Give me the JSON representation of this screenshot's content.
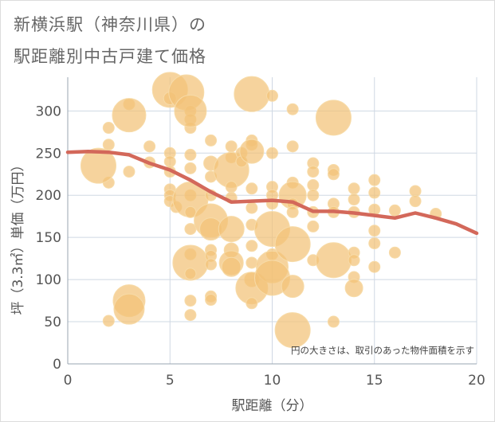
{
  "title_lines": [
    "新横浜駅（神奈川県）の",
    "駅距離別中古戸建て価格"
  ],
  "colors": {
    "bubble_fill": "#F2C277",
    "bubble_stroke": "#F7DBA8",
    "line": "#D3685A",
    "grid": "#cfd8e3",
    "text": "#555555"
  },
  "chart_data": {
    "type": "scatter",
    "xlabel": "駅距離（分）",
    "ylabel": "坪（3.3㎡）単価（万円）",
    "xlim": [
      0,
      20
    ],
    "ylim": [
      0,
      340
    ],
    "xticks": [
      0,
      5,
      10,
      15,
      20
    ],
    "yticks": [
      0,
      50,
      100,
      150,
      200,
      250,
      300
    ],
    "grid": true,
    "note": "円の大きさは、取引のあった物件面積を示す",
    "bubbles": [
      {
        "x": 2,
        "y": 51,
        "r": 7
      },
      {
        "x": 2,
        "y": 215,
        "r": 7
      },
      {
        "x": 2,
        "y": 260,
        "r": 7
      },
      {
        "x": 2,
        "y": 280,
        "r": 7
      },
      {
        "x": 1.5,
        "y": 235,
        "r": 22
      },
      {
        "x": 3,
        "y": 308,
        "r": 7
      },
      {
        "x": 3,
        "y": 295,
        "r": 21
      },
      {
        "x": 3,
        "y": 228,
        "r": 7
      },
      {
        "x": 3,
        "y": 75,
        "r": 20
      },
      {
        "x": 3,
        "y": 65,
        "r": 19
      },
      {
        "x": 4,
        "y": 258,
        "r": 7
      },
      {
        "x": 4,
        "y": 239,
        "r": 7
      },
      {
        "x": 5,
        "y": 325,
        "r": 22
      },
      {
        "x": 5,
        "y": 315,
        "r": 8
      },
      {
        "x": 5,
        "y": 250,
        "r": 7
      },
      {
        "x": 5,
        "y": 240,
        "r": 7
      },
      {
        "x": 5,
        "y": 228,
        "r": 7
      },
      {
        "x": 5,
        "y": 207,
        "r": 7
      },
      {
        "x": 5,
        "y": 200,
        "r": 7
      },
      {
        "x": 5,
        "y": 193,
        "r": 7
      },
      {
        "x": 5.3,
        "y": 186,
        "r": 7
      },
      {
        "x": 5.8,
        "y": 322,
        "r": 22
      },
      {
        "x": 6,
        "y": 300,
        "r": 7
      },
      {
        "x": 6,
        "y": 290,
        "r": 7
      },
      {
        "x": 6,
        "y": 280,
        "r": 7
      },
      {
        "x": 6,
        "y": 300,
        "r": 20
      },
      {
        "x": 6,
        "y": 248,
        "r": 7
      },
      {
        "x": 6,
        "y": 232,
        "r": 7
      },
      {
        "x": 6,
        "y": 200,
        "r": 7
      },
      {
        "x": 6,
        "y": 195,
        "r": 22
      },
      {
        "x": 6,
        "y": 180,
        "r": 7
      },
      {
        "x": 6,
        "y": 160,
        "r": 7
      },
      {
        "x": 6,
        "y": 130,
        "r": 7
      },
      {
        "x": 6,
        "y": 120,
        "r": 22
      },
      {
        "x": 6,
        "y": 107,
        "r": 7
      },
      {
        "x": 6,
        "y": 75,
        "r": 7
      },
      {
        "x": 6,
        "y": 58,
        "r": 7
      },
      {
        "x": 7,
        "y": 265,
        "r": 7
      },
      {
        "x": 7,
        "y": 238,
        "r": 9
      },
      {
        "x": 7,
        "y": 222,
        "r": 7
      },
      {
        "x": 7,
        "y": 200,
        "r": 7
      },
      {
        "x": 7,
        "y": 170,
        "r": 21
      },
      {
        "x": 7,
        "y": 160,
        "r": 14
      },
      {
        "x": 7,
        "y": 135,
        "r": 7
      },
      {
        "x": 7,
        "y": 128,
        "r": 7
      },
      {
        "x": 7,
        "y": 118,
        "r": 7
      },
      {
        "x": 7,
        "y": 80,
        "r": 7
      },
      {
        "x": 7,
        "y": 76,
        "r": 7
      },
      {
        "x": 8,
        "y": 258,
        "r": 7
      },
      {
        "x": 8,
        "y": 245,
        "r": 7
      },
      {
        "x": 8,
        "y": 230,
        "r": 22
      },
      {
        "x": 8,
        "y": 210,
        "r": 7
      },
      {
        "x": 8,
        "y": 197,
        "r": 7
      },
      {
        "x": 8,
        "y": 160,
        "r": 16
      },
      {
        "x": 8,
        "y": 135,
        "r": 9
      },
      {
        "x": 8,
        "y": 120,
        "r": 15
      },
      {
        "x": 8,
        "y": 115,
        "r": 12
      },
      {
        "x": 8.5,
        "y": 250,
        "r": 7
      },
      {
        "x": 8.5,
        "y": 240,
        "r": 7
      },
      {
        "x": 9,
        "y": 320,
        "r": 22
      },
      {
        "x": 9,
        "y": 265,
        "r": 7
      },
      {
        "x": 9,
        "y": 260,
        "r": 7
      },
      {
        "x": 9,
        "y": 252,
        "r": 15
      },
      {
        "x": 9,
        "y": 208,
        "r": 7
      },
      {
        "x": 9,
        "y": 185,
        "r": 7
      },
      {
        "x": 9,
        "y": 165,
        "r": 7
      },
      {
        "x": 9,
        "y": 140,
        "r": 7
      },
      {
        "x": 9,
        "y": 120,
        "r": 7
      },
      {
        "x": 9,
        "y": 100,
        "r": 9
      },
      {
        "x": 9,
        "y": 90,
        "r": 20
      },
      {
        "x": 9,
        "y": 72,
        "r": 7
      },
      {
        "x": 10,
        "y": 318,
        "r": 7
      },
      {
        "x": 10,
        "y": 250,
        "r": 7
      },
      {
        "x": 10,
        "y": 210,
        "r": 7
      },
      {
        "x": 10,
        "y": 200,
        "r": 7
      },
      {
        "x": 10,
        "y": 190,
        "r": 7
      },
      {
        "x": 10,
        "y": 160,
        "r": 22
      },
      {
        "x": 10,
        "y": 130,
        "r": 7
      },
      {
        "x": 10,
        "y": 115,
        "r": 20
      },
      {
        "x": 10,
        "y": 102,
        "r": 22
      },
      {
        "x": 11,
        "y": 302,
        "r": 7
      },
      {
        "x": 11,
        "y": 258,
        "r": 7
      },
      {
        "x": 11,
        "y": 215,
        "r": 7
      },
      {
        "x": 11,
        "y": 200,
        "r": 17
      },
      {
        "x": 11,
        "y": 190,
        "r": 7
      },
      {
        "x": 11,
        "y": 180,
        "r": 7
      },
      {
        "x": 11,
        "y": 142,
        "r": 22
      },
      {
        "x": 11,
        "y": 92,
        "r": 14
      },
      {
        "x": 11,
        "y": 40,
        "r": 22
      },
      {
        "x": 12,
        "y": 238,
        "r": 7
      },
      {
        "x": 12,
        "y": 228,
        "r": 7
      },
      {
        "x": 12,
        "y": 212,
        "r": 7
      },
      {
        "x": 12,
        "y": 200,
        "r": 7
      },
      {
        "x": 12,
        "y": 180,
        "r": 7
      },
      {
        "x": 12,
        "y": 163,
        "r": 7
      },
      {
        "x": 12,
        "y": 123,
        "r": 7
      },
      {
        "x": 13,
        "y": 292,
        "r": 22
      },
      {
        "x": 13,
        "y": 230,
        "r": 7
      },
      {
        "x": 13,
        "y": 225,
        "r": 7
      },
      {
        "x": 13,
        "y": 190,
        "r": 7
      },
      {
        "x": 13,
        "y": 180,
        "r": 7
      },
      {
        "x": 13,
        "y": 123,
        "r": 22
      },
      {
        "x": 13,
        "y": 50,
        "r": 7
      },
      {
        "x": 14,
        "y": 208,
        "r": 7
      },
      {
        "x": 14,
        "y": 195,
        "r": 7
      },
      {
        "x": 14,
        "y": 180,
        "r": 7
      },
      {
        "x": 14,
        "y": 132,
        "r": 7
      },
      {
        "x": 14,
        "y": 123,
        "r": 7
      },
      {
        "x": 14,
        "y": 103,
        "r": 7
      },
      {
        "x": 14,
        "y": 90,
        "r": 11
      },
      {
        "x": 15,
        "y": 218,
        "r": 7
      },
      {
        "x": 15,
        "y": 203,
        "r": 7
      },
      {
        "x": 15,
        "y": 183,
        "r": 7
      },
      {
        "x": 15,
        "y": 158,
        "r": 7
      },
      {
        "x": 15,
        "y": 143,
        "r": 7
      },
      {
        "x": 15,
        "y": 115,
        "r": 7
      },
      {
        "x": 16,
        "y": 182,
        "r": 7
      },
      {
        "x": 16,
        "y": 132,
        "r": 7
      },
      {
        "x": 17,
        "y": 205,
        "r": 7
      },
      {
        "x": 17,
        "y": 193,
        "r": 7
      },
      {
        "x": 18,
        "y": 178,
        "r": 7
      }
    ],
    "series": [
      {
        "x": [
          0,
          1,
          2,
          3,
          4,
          5,
          6,
          7,
          8,
          9,
          10,
          11,
          12,
          13,
          14,
          15,
          16,
          17,
          18,
          19,
          20
        ],
        "values": [
          251,
          252,
          251,
          248,
          238,
          230,
          218,
          204,
          192,
          193,
          194,
          192,
          181,
          181,
          179,
          176,
          173,
          179,
          173,
          166,
          155
        ]
      }
    ]
  }
}
